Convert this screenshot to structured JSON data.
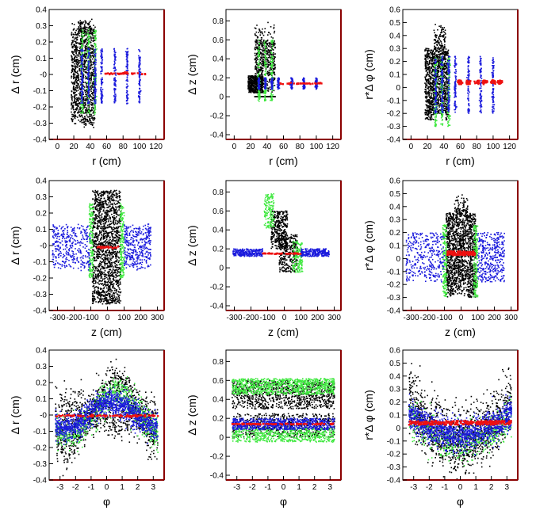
{
  "chart_data": [
    {
      "type": "scatter",
      "xlabel": "r (cm)",
      "ylabel": "Δ r (cm)",
      "xlim": [
        -10,
        130
      ],
      "ylim": [
        -0.4,
        0.4
      ],
      "xticks": [
        0,
        20,
        40,
        60,
        80,
        100,
        120
      ],
      "xtick_labels": [
        "0",
        "20",
        "40",
        "60",
        "80",
        "100",
        "120"
      ],
      "yticks": [
        -0.4,
        -0.3,
        -0.2,
        -0.1,
        0,
        0.1,
        0.2,
        0.3,
        0.4
      ],
      "ytick_labels": [
        "-0.4",
        "-0.3",
        "-0.2",
        "-0.1",
        "-0",
        "0.1",
        "0.2",
        "0.3",
        "0.4"
      ]
    },
    {
      "type": "scatter",
      "xlabel": "r (cm)",
      "ylabel": "Δ z (cm)",
      "xlim": [
        -10,
        130
      ],
      "ylim": [
        -0.45,
        0.92
      ],
      "xticks": [
        0,
        20,
        40,
        60,
        80,
        100,
        120
      ],
      "xtick_labels": [
        "0",
        "20",
        "40",
        "60",
        "80",
        "100",
        "120"
      ],
      "yticks": [
        -0.4,
        -0.2,
        0,
        0.2,
        0.4,
        0.6,
        0.8
      ],
      "ytick_labels": [
        "-0.4",
        "-0.2",
        "0",
        "0.2",
        "0.4",
        "0.6",
        "0.8"
      ]
    },
    {
      "type": "scatter",
      "xlabel": "r (cm)",
      "ylabel": "r*Δ φ (cm)",
      "xlim": [
        -10,
        130
      ],
      "ylim": [
        -0.4,
        0.6
      ],
      "xticks": [
        0,
        20,
        40,
        60,
        80,
        100,
        120
      ],
      "xtick_labels": [
        "0",
        "20",
        "40",
        "60",
        "80",
        "100",
        "120"
      ],
      "yticks": [
        -0.4,
        -0.3,
        -0.2,
        -0.1,
        0,
        0.1,
        0.2,
        0.3,
        0.4,
        0.5,
        0.6
      ],
      "ytick_labels": [
        "-0.4",
        "-0.3",
        "-0.2",
        "-0.1",
        "0",
        "0.1",
        "0.2",
        "0.3",
        "0.4",
        "0.5",
        "0.6"
      ]
    },
    {
      "type": "scatter",
      "xlabel": "z (cm)",
      "ylabel": "Δ r (cm)",
      "xlim": [
        -350,
        340
      ],
      "ylim": [
        -0.4,
        0.4
      ],
      "xticks": [
        -300,
        -200,
        -100,
        0,
        100,
        200,
        300
      ],
      "xtick_labels": [
        "-300",
        "-200",
        "-100",
        "0",
        "100",
        "200",
        "300"
      ],
      "yticks": [
        -0.4,
        -0.3,
        -0.2,
        -0.1,
        0,
        0.1,
        0.2,
        0.3,
        0.4
      ],
      "ytick_labels": [
        "-0.4",
        "-0.3",
        "-0.2",
        "-0.1",
        "-0",
        "0.1",
        "0.2",
        "0.3",
        "0.4"
      ]
    },
    {
      "type": "scatter",
      "xlabel": "z (cm)",
      "ylabel": "Δ z (cm)",
      "xlim": [
        -350,
        340
      ],
      "ylim": [
        -0.45,
        0.92
      ],
      "xticks": [
        -300,
        -200,
        -100,
        0,
        100,
        200,
        300
      ],
      "xtick_labels": [
        "-300",
        "-200",
        "-100",
        "0",
        "100",
        "200",
        "300"
      ],
      "yticks": [
        -0.4,
        -0.2,
        0,
        0.2,
        0.4,
        0.6,
        0.8
      ],
      "ytick_labels": [
        "-0.4",
        "-0.2",
        "0",
        "0.2",
        "0.4",
        "0.6",
        "0.8"
      ]
    },
    {
      "type": "scatter",
      "xlabel": "z (cm)",
      "ylabel": "r*Δ φ (cm)",
      "xlim": [
        -350,
        340
      ],
      "ylim": [
        -0.4,
        0.6
      ],
      "xticks": [
        -300,
        -200,
        -100,
        0,
        100,
        200,
        300
      ],
      "xtick_labels": [
        "-300",
        "-200",
        "-100",
        "0",
        "100",
        "200",
        "300"
      ],
      "yticks": [
        -0.4,
        -0.3,
        -0.2,
        -0.1,
        0,
        0.1,
        0.2,
        0.3,
        0.4,
        0.5,
        0.6
      ],
      "ytick_labels": [
        "-0.4",
        "-0.3",
        "-0.2",
        "-0.1",
        "0",
        "0.1",
        "0.2",
        "0.3",
        "0.4",
        "0.5",
        "0.6"
      ]
    },
    {
      "type": "scatter",
      "xlabel": "φ",
      "ylabel": "Δ r (cm)",
      "xlim": [
        -3.7,
        3.7
      ],
      "ylim": [
        -0.4,
        0.4
      ],
      "xticks": [
        -3,
        -2,
        -1,
        0,
        1,
        2,
        3
      ],
      "xtick_labels": [
        "-3",
        "-2",
        "-1",
        "0",
        "1",
        "2",
        "3"
      ],
      "yticks": [
        -0.4,
        -0.3,
        -0.2,
        -0.1,
        0,
        0.1,
        0.2,
        0.3,
        0.4
      ],
      "ytick_labels": [
        "-0.4",
        "-0.3",
        "-0.2",
        "-0.1",
        "-0",
        "0.1",
        "0.2",
        "0.3",
        "0.4"
      ]
    },
    {
      "type": "scatter",
      "xlabel": "φ",
      "ylabel": "Δ z (cm)",
      "xlim": [
        -3.7,
        3.7
      ],
      "ylim": [
        -0.45,
        0.92
      ],
      "xticks": [
        -3,
        -2,
        -1,
        0,
        1,
        2,
        3
      ],
      "xtick_labels": [
        "-3",
        "-2",
        "-1",
        "0",
        "1",
        "2",
        "3"
      ],
      "yticks": [
        -0.4,
        -0.2,
        0,
        0.2,
        0.4,
        0.6,
        0.8
      ],
      "ytick_labels": [
        "-0.4",
        "-0.2",
        "0",
        "0.2",
        "0.4",
        "0.6",
        "0.8"
      ]
    },
    {
      "type": "scatter",
      "xlabel": "φ",
      "ylabel": "r*Δ φ (cm)",
      "xlim": [
        -3.7,
        3.7
      ],
      "ylim": [
        -0.4,
        0.6
      ],
      "xticks": [
        -3,
        -2,
        -1,
        0,
        1,
        2,
        3
      ],
      "xtick_labels": [
        "-3",
        "-2",
        "-1",
        "0",
        "1",
        "2",
        "3"
      ],
      "yticks": [
        -0.4,
        -0.3,
        -0.2,
        -0.1,
        0,
        0.1,
        0.2,
        0.3,
        0.4,
        0.5,
        0.6
      ],
      "ytick_labels": [
        "-0.4",
        "-0.3",
        "-0.2",
        "-0.1",
        "0",
        "0.1",
        "0.2",
        "0.3",
        "0.4",
        "0.5",
        "0.6"
      ]
    }
  ],
  "colors": {
    "black": "#000000",
    "green": "#3fe83f",
    "blue": "#1a1adc",
    "red": "#ee1111",
    "frame": "#8b0000"
  }
}
